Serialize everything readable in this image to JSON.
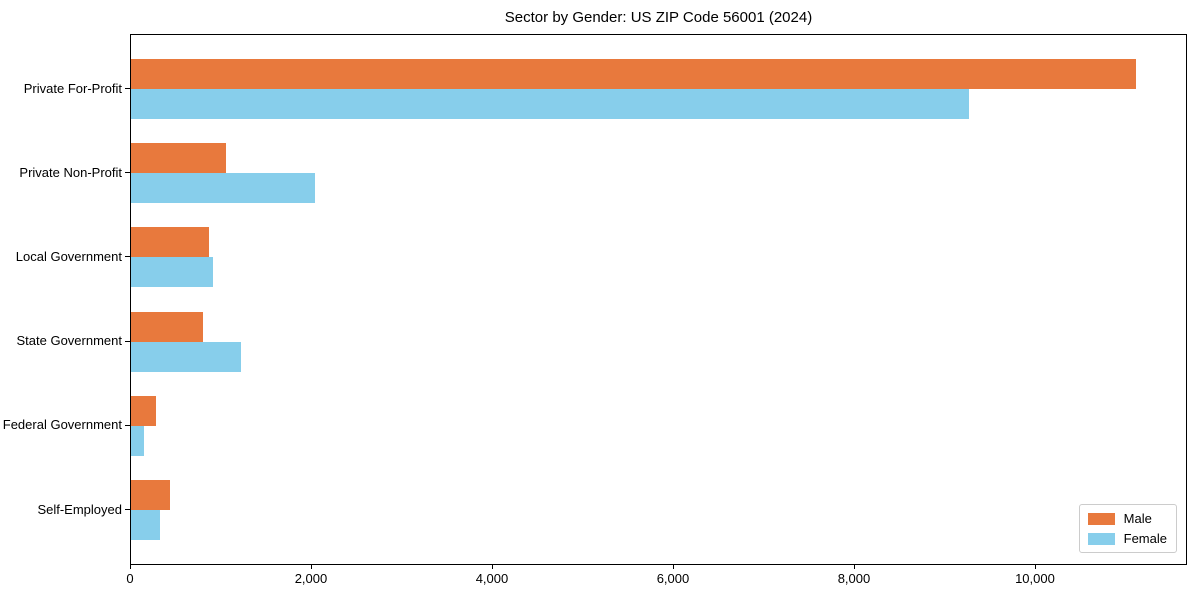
{
  "figure": {
    "background": "#ffffff",
    "axis_color": "#000000"
  },
  "chart_data": {
    "type": "bar",
    "orientation": "horizontal",
    "title": "Sector by Gender: US ZIP Code 56001 (2024)",
    "categories": [
      "Private For-Profit",
      "Private Non-Profit",
      "Local Government",
      "State Government",
      "Federal Government",
      "Self-Employed"
    ],
    "series": [
      {
        "name": "Male",
        "color": "#E8793D",
        "values": [
          11100,
          1050,
          860,
          795,
          275,
          430
        ]
      },
      {
        "name": "Female",
        "color": "#87CEEB",
        "values": [
          9260,
          2030,
          905,
          1215,
          145,
          320
        ]
      }
    ],
    "xlabel": "",
    "ylabel": "",
    "xlim": [
      0,
      11680
    ],
    "x_ticks": [
      0,
      2000,
      4000,
      6000,
      8000,
      10000
    ],
    "x_tick_labels": [
      "0",
      "2,000",
      "4,000",
      "6,000",
      "8,000",
      "10,000"
    ],
    "grid": false,
    "legend": {
      "position": "lower right",
      "items": [
        {
          "label": "Male",
          "color": "#E8793D"
        },
        {
          "label": "Female",
          "color": "#87CEEB"
        }
      ]
    }
  }
}
